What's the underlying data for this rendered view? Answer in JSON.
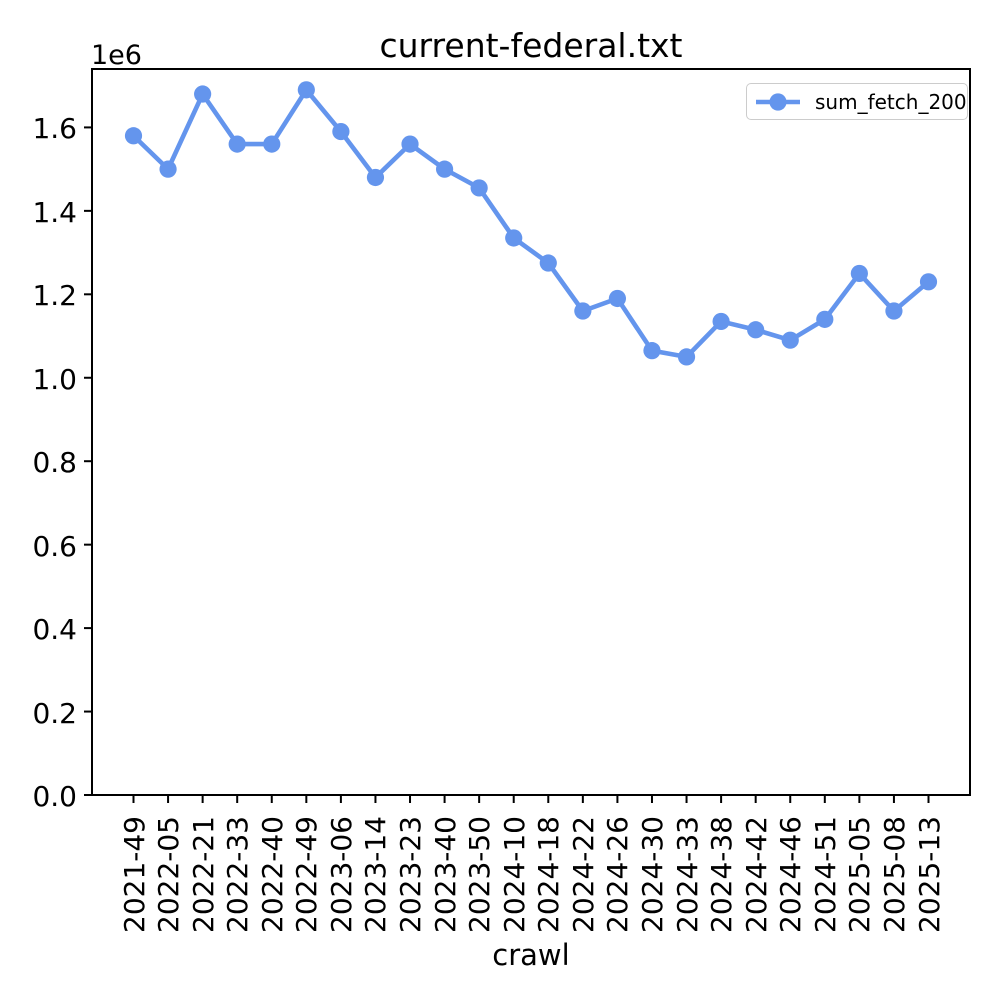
{
  "figure": {
    "title": "current-federal.txt",
    "y_offset_label": "1e6"
  },
  "chart_data": {
    "type": "line",
    "title": "current-federal.txt",
    "xlabel": "crawl",
    "ylabel": "",
    "categories": [
      "2021-49",
      "2022-05",
      "2022-21",
      "2022-33",
      "2022-40",
      "2022-49",
      "2023-06",
      "2023-14",
      "2023-23",
      "2023-40",
      "2023-50",
      "2024-10",
      "2024-18",
      "2024-22",
      "2024-26",
      "2024-30",
      "2024-33",
      "2024-38",
      "2024-42",
      "2024-46",
      "2024-51",
      "2025-05",
      "2025-08",
      "2025-13"
    ],
    "series": [
      {
        "name": "sum_fetch_200",
        "color": "#6495ED",
        "marker": "circle",
        "values": [
          1580000,
          1500000,
          1680000,
          1560000,
          1560000,
          1690000,
          1590000,
          1480000,
          1560000,
          1500000,
          1455000,
          1335000,
          1275000,
          1160000,
          1190000,
          1065000,
          1050000,
          1135000,
          1115000,
          1090000,
          1140000,
          1250000,
          1160000,
          1230000
        ]
      }
    ],
    "ylim": [
      0,
      1740000
    ],
    "ytick_values": [
      0,
      200000,
      400000,
      600000,
      800000,
      1000000,
      1200000,
      1400000,
      1600000
    ],
    "ytick_labels": [
      "0.0",
      "0.2",
      "0.4",
      "0.6",
      "0.8",
      "1.0",
      "1.2",
      "1.4",
      "1.6"
    ],
    "y_offset_label": "1e6",
    "x_tick_rotation": 90,
    "grid": false,
    "legend_position": "upper right",
    "spine_color": "#000000"
  }
}
